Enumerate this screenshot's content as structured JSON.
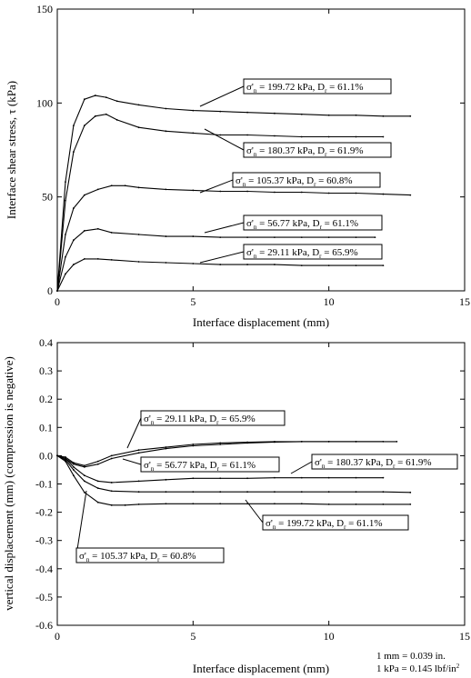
{
  "units_note": {
    "line1": "1 mm = 0.039 in.",
    "line2": "1 kPa = 0.145 lbf/in"
  },
  "chart_data": [
    {
      "type": "line",
      "xlabel": "Interface displacement (mm)",
      "ylabel": "Interface shear stress, τ (kPa)",
      "xlim": [
        0,
        15
      ],
      "ylim": [
        0,
        150
      ],
      "xticks": [
        "0",
        "5",
        "10",
        "15"
      ],
      "yticks": [
        "0",
        "50",
        "100",
        "150"
      ],
      "grid": false,
      "series": [
        {
          "name": "σ'n = 199.72 kPa, Dr = 61.1%",
          "label_sigma": "199.72 kPa, D",
          "label_dr": "= 61.1%",
          "x": [
            0,
            0.3,
            0.6,
            1.0,
            1.4,
            1.8,
            2.2,
            3.0,
            4.0,
            5.0,
            6.0,
            7.0,
            8.0,
            9.0,
            10.0,
            11.0,
            12.0,
            13.0
          ],
          "y": [
            0,
            58,
            88,
            102,
            104,
            103,
            101,
            99,
            97,
            96,
            95.5,
            95,
            94.5,
            94,
            93.5,
            93.5,
            93,
            93
          ]
        },
        {
          "name": "σ'n = 180.37 kPa, Dr = 61.9%",
          "label_sigma": "180.37 kPa, D",
          "label_dr": "= 61.9%",
          "x": [
            0,
            0.3,
            0.6,
            1.0,
            1.4,
            1.8,
            2.2,
            3.0,
            4.0,
            5.0,
            6.0,
            7.0,
            8.0,
            9.0,
            10.0,
            11.0,
            12.0
          ],
          "y": [
            0,
            48,
            74,
            88,
            93,
            94,
            91,
            87,
            85,
            84,
            83,
            83,
            82.5,
            82,
            82,
            82,
            82
          ]
        },
        {
          "name": "σ'n = 105.37 kPa, Dr = 60.8%",
          "label_sigma": "105.37 kPa, D",
          "label_dr": "= 60.8%",
          "x": [
            0,
            0.3,
            0.6,
            1.0,
            1.5,
            2.0,
            2.5,
            3.0,
            4.0,
            5.0,
            6.0,
            7.0,
            8.0,
            9.0,
            10.0,
            11.0,
            12.0,
            13.0
          ],
          "y": [
            0,
            30,
            44,
            51,
            54,
            56,
            56,
            55,
            54,
            53.5,
            53,
            53,
            52.5,
            52.5,
            52,
            52,
            51.5,
            51
          ]
        },
        {
          "name": "σ'n = 56.77 kPa, Dr = 61.1%",
          "label_sigma": "56.77 kPa, D",
          "label_dr": "= 61.1%",
          "x": [
            0,
            0.3,
            0.6,
            1.0,
            1.5,
            2.0,
            3.0,
            4.0,
            5.0,
            6.0,
            7.0,
            8.0,
            9.0,
            10.0,
            11.0,
            11.7
          ],
          "y": [
            0,
            18,
            27,
            32,
            33,
            31,
            30,
            29,
            29,
            28.5,
            28.5,
            28.5,
            28.5,
            28.5,
            28.5,
            28.5
          ]
        },
        {
          "name": "σ'n = 29.11 kPa, Dr = 65.9%",
          "label_sigma": "29.11 kPa, D",
          "label_dr": "= 65.9%",
          "x": [
            0,
            0.3,
            0.6,
            1.0,
            1.5,
            2.0,
            3.0,
            4.0,
            5.0,
            6.0,
            7.0,
            8.0,
            9.0,
            10.0,
            11.0,
            12.0
          ],
          "y": [
            0,
            9,
            14,
            17,
            17,
            16.5,
            15.5,
            15,
            14.5,
            14,
            14,
            14,
            13.5,
            13.5,
            13.5,
            13.5
          ]
        }
      ]
    },
    {
      "type": "line",
      "xlabel": "Interface displacement (mm)",
      "ylabel": "vertical displacement (mm) (compression is negative)",
      "xlim": [
        0,
        15
      ],
      "ylim": [
        -0.6,
        0.4
      ],
      "xticks": [
        "0",
        "5",
        "10",
        "15"
      ],
      "yticks": [
        "-0.6",
        "-0.5",
        "-0.4",
        "-0.3",
        "-0.2",
        "-0.1",
        "0.0",
        "0.1",
        "0.2",
        "0.3",
        "0.4"
      ],
      "grid": false,
      "series": [
        {
          "name": "σ'n = 29.11 kPa, Dr = 65.9%",
          "label_sigma": "29.11 kPa, D",
          "label_dr": "= 65.9%",
          "x": [
            0,
            0.3,
            0.6,
            1.0,
            1.5,
            2.0,
            3.0,
            4.0,
            5.0,
            6.0,
            7.0,
            8.0,
            9.0,
            10.0,
            11.0,
            12.0
          ],
          "y": [
            0,
            -0.005,
            -0.025,
            -0.035,
            -0.02,
            0.0,
            0.02,
            0.03,
            0.04,
            0.045,
            0.048,
            0.05,
            0.05,
            0.05,
            0.05,
            0.05
          ]
        },
        {
          "name": "σ'n = 56.77 kPa, Dr = 61.1%",
          "label_sigma": "56.77 kPa, D",
          "label_dr": "= 61.1%",
          "x": [
            0,
            0.3,
            0.6,
            1.0,
            1.5,
            2.0,
            3.0,
            4.0,
            5.0,
            6.0,
            7.0,
            8.0,
            9.0,
            10.0,
            11.0,
            12.5
          ],
          "y": [
            0,
            -0.01,
            -0.03,
            -0.04,
            -0.03,
            -0.01,
            0.01,
            0.025,
            0.035,
            0.04,
            0.045,
            0.048,
            0.05,
            0.05,
            0.05,
            0.05
          ]
        },
        {
          "name": "σ'n = 180.37 kPa, Dr = 61.9%",
          "label_sigma": "180.37 kPa, D",
          "label_dr": "= 61.9%",
          "x": [
            0,
            0.3,
            0.6,
            1.0,
            1.5,
            2.0,
            3.0,
            4.0,
            5.0,
            6.0,
            7.0,
            8.0,
            9.0,
            10.0,
            11.0,
            12.0
          ],
          "y": [
            0,
            -0.01,
            -0.04,
            -0.07,
            -0.09,
            -0.095,
            -0.09,
            -0.085,
            -0.08,
            -0.08,
            -0.08,
            -0.078,
            -0.078,
            -0.078,
            -0.078,
            -0.078
          ]
        },
        {
          "name": "σ'n = 105.37 kPa, Dr = 60.8%",
          "label_sigma": "105.37 kPa, D",
          "label_dr": "= 60.8%",
          "x": [
            0,
            0.3,
            0.6,
            1.0,
            1.5,
            2.0,
            3.0,
            4.0,
            5.0,
            6.0,
            7.0,
            8.0,
            9.0,
            10.0,
            11.0,
            12.0,
            13.0
          ],
          "y": [
            0,
            -0.015,
            -0.05,
            -0.09,
            -0.115,
            -0.125,
            -0.128,
            -0.128,
            -0.128,
            -0.128,
            -0.128,
            -0.128,
            -0.128,
            -0.128,
            -0.128,
            -0.128,
            -0.13
          ]
        },
        {
          "name": "σ'n = 199.72 kPa, Dr = 61.1%",
          "label_sigma": "199.72 kPa, D",
          "label_dr": "= 61.1%",
          "x": [
            0,
            0.3,
            0.6,
            1.0,
            1.5,
            2.0,
            2.5,
            3.0,
            4.0,
            5.0,
            6.0,
            7.0,
            8.0,
            9.0,
            10.0,
            11.0,
            12.0,
            13.0
          ],
          "y": [
            0,
            -0.02,
            -0.07,
            -0.13,
            -0.165,
            -0.175,
            -0.175,
            -0.172,
            -0.17,
            -0.17,
            -0.17,
            -0.17,
            -0.17,
            -0.17,
            -0.172,
            -0.172,
            -0.172,
            -0.172
          ]
        }
      ]
    }
  ]
}
